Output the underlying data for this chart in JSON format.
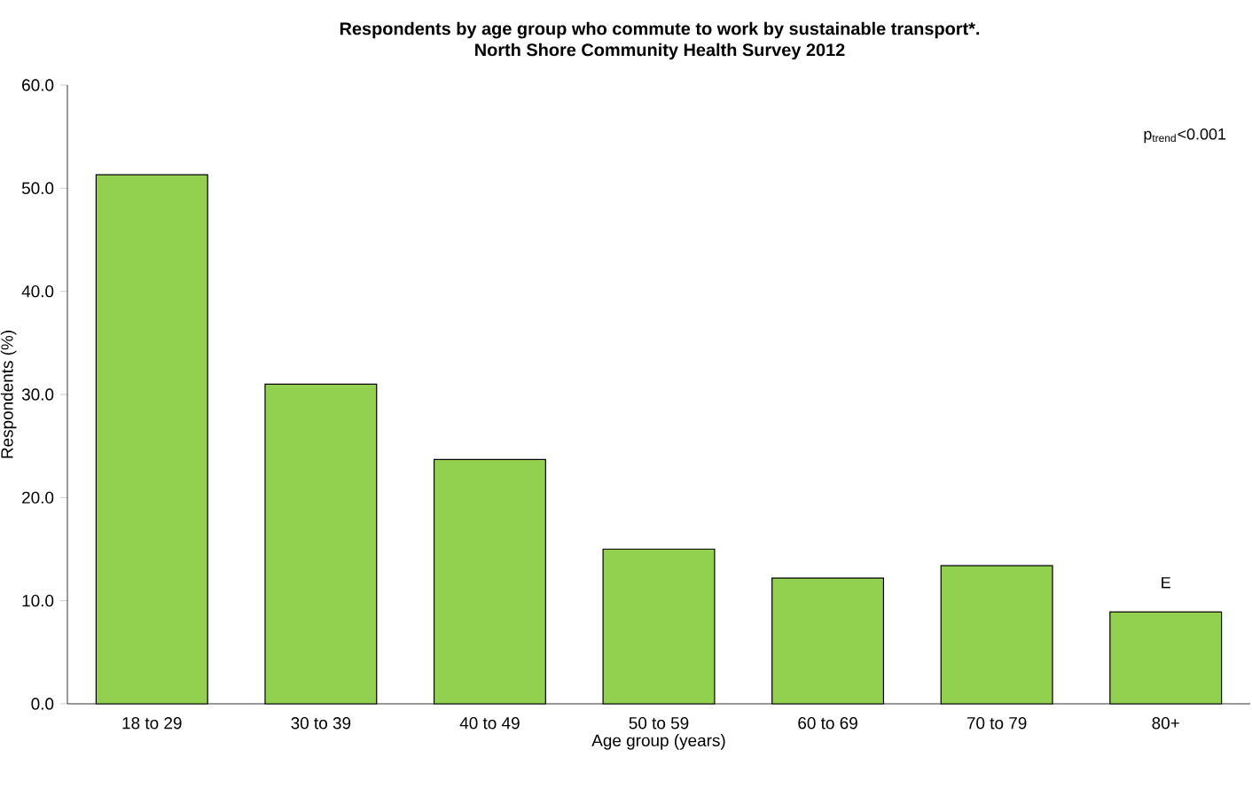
{
  "chart_data": {
    "type": "bar",
    "title": "Respondents by age group who commute to work by sustainable transport*.\nNorth Shore Community Health Survey 2012",
    "xlabel": "Age group (years)",
    "ylabel": "Respondents (%)",
    "categories": [
      "18 to 29",
      "30 to 39",
      "40 to 49",
      "50 to 59",
      "60 to 69",
      "70 to 79",
      "80+"
    ],
    "values": [
      51.3,
      31.0,
      23.7,
      15.0,
      12.2,
      13.4,
      8.9
    ],
    "color": "#92d050",
    "ylim": [
      0,
      60
    ],
    "yticks": [
      {
        "value": 0,
        "label": "0.0"
      },
      {
        "value": 10,
        "label": "10.0"
      },
      {
        "value": 20,
        "label": "20.0"
      },
      {
        "value": 30,
        "label": "30.0"
      },
      {
        "value": 40,
        "label": "40.0"
      },
      {
        "value": 50,
        "label": "50.0"
      },
      {
        "value": 60,
        "label": "60.0"
      }
    ],
    "annotations": [
      "p$_{trend}$<0.001",
      {
        "text": "E",
        "x": "80+",
        "y": 8.9
      }
    ]
  }
}
